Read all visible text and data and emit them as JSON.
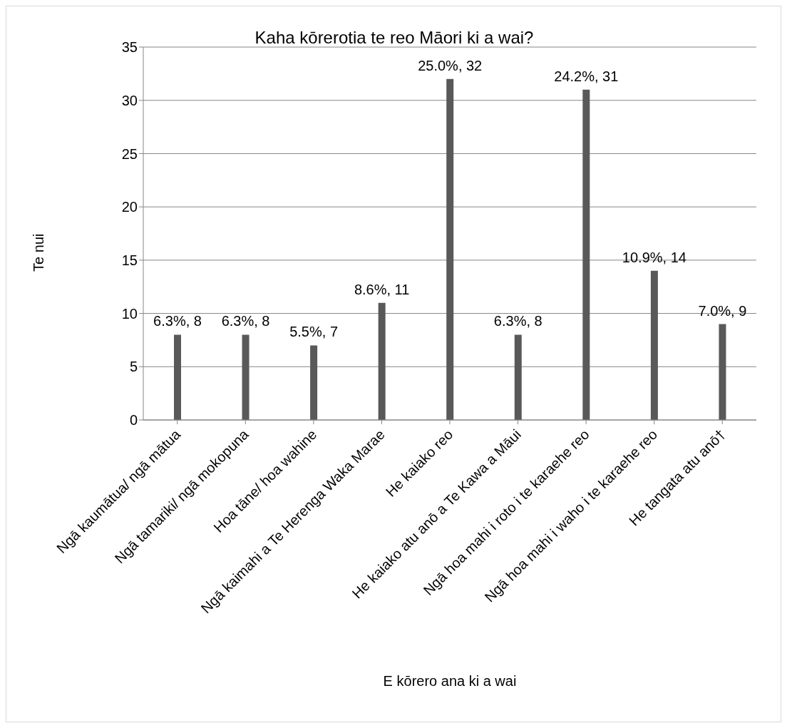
{
  "chart_data": {
    "type": "bar",
    "title": "Kaha kōrerotia te reo Māori ki a wai?",
    "xlabel": "E kōrero ana ki a wai",
    "ylabel": "Te nui",
    "categories": [
      "Ngā kaumātua/ ngā mātua",
      "Ngā tamariki/ ngā mokopuna",
      "Hoa tāne/ hoa wahine",
      "Ngā kaimahi a Te Herenga Waka Marae",
      "He kaiako reo",
      "He kaiako atu anō a Te Kawa a Māui",
      "Ngā hoa mahi i roto i te karaehe reo",
      "Ngā hoa mahi i waho i te karaehe reo",
      "He tangata atu anō†"
    ],
    "values": [
      8,
      8,
      7,
      11,
      32,
      8,
      31,
      14,
      9
    ],
    "value_labels": [
      "6.3%, 8",
      "6.3%, 8",
      "5.5%, 7",
      "8.6%, 11",
      "25.0%, 32",
      "6.3%, 8",
      "24.2%, 31",
      "10.9%, 14",
      "7.0%, 9"
    ],
    "color": "#595959",
    "ylim": [
      0,
      35
    ],
    "yticks": [
      0,
      5,
      10,
      15,
      20,
      25,
      30,
      35
    ],
    "grid": "y"
  }
}
